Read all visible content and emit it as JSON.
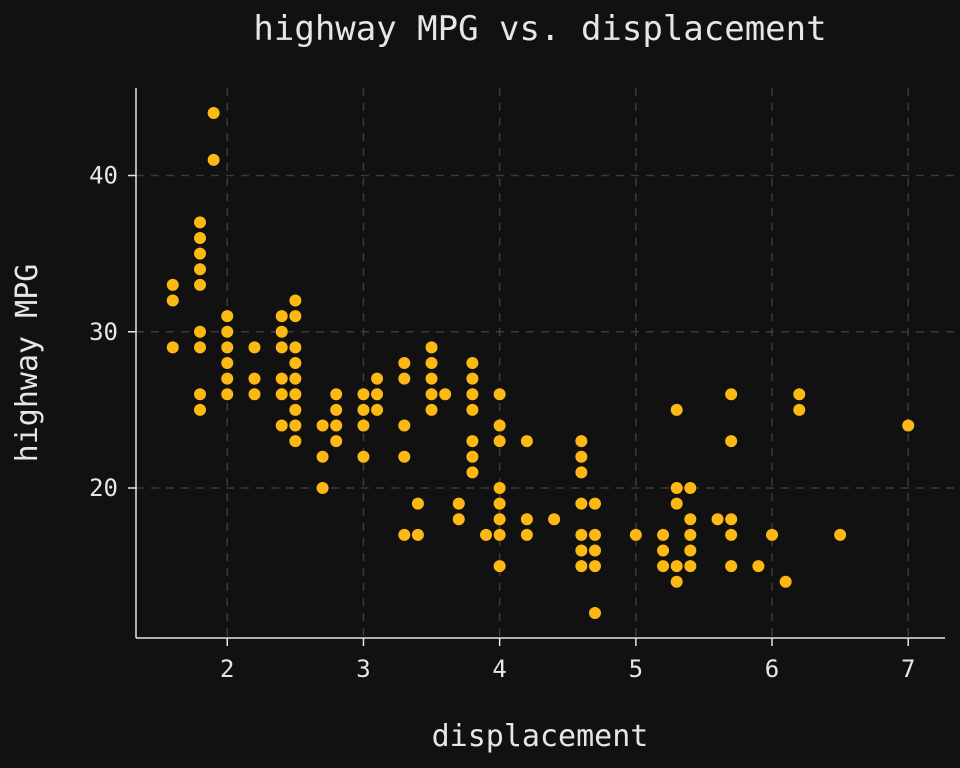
{
  "chart_data": {
    "type": "scatter",
    "title": "highway MPG vs. displacement",
    "xlabel": "displacement",
    "ylabel": "highway MPG",
    "xlim": [
      1.33,
      7.27
    ],
    "ylim": [
      10.4,
      45.6
    ],
    "xticks": [
      2,
      3,
      4,
      5,
      6,
      7
    ],
    "yticks": [
      20,
      30,
      40
    ],
    "grid": true,
    "point_color": "#FDB913",
    "background": "#111111",
    "points": [
      [
        1.6,
        33
      ],
      [
        1.6,
        32
      ],
      [
        1.6,
        29
      ],
      [
        1.8,
        37
      ],
      [
        1.8,
        36
      ],
      [
        1.8,
        35
      ],
      [
        1.8,
        34
      ],
      [
        1.8,
        33
      ],
      [
        1.8,
        30
      ],
      [
        1.8,
        29
      ],
      [
        1.8,
        26
      ],
      [
        1.8,
        25
      ],
      [
        1.9,
        44
      ],
      [
        1.9,
        41
      ],
      [
        2.0,
        31
      ],
      [
        2.0,
        30
      ],
      [
        2.0,
        29
      ],
      [
        2.0,
        28
      ],
      [
        2.0,
        27
      ],
      [
        2.0,
        26
      ],
      [
        2.2,
        29
      ],
      [
        2.2,
        27
      ],
      [
        2.2,
        26
      ],
      [
        2.4,
        31
      ],
      [
        2.4,
        30
      ],
      [
        2.4,
        29
      ],
      [
        2.4,
        27
      ],
      [
        2.4,
        26
      ],
      [
        2.4,
        24
      ],
      [
        2.5,
        32
      ],
      [
        2.5,
        31
      ],
      [
        2.5,
        29
      ],
      [
        2.5,
        28
      ],
      [
        2.5,
        27
      ],
      [
        2.5,
        26
      ],
      [
        2.5,
        25
      ],
      [
        2.5,
        24
      ],
      [
        2.5,
        23
      ],
      [
        2.7,
        24
      ],
      [
        2.7,
        22
      ],
      [
        2.7,
        20
      ],
      [
        2.8,
        26
      ],
      [
        2.8,
        25
      ],
      [
        2.8,
        24
      ],
      [
        2.8,
        23
      ],
      [
        3.0,
        26
      ],
      [
        3.0,
        25
      ],
      [
        3.0,
        24
      ],
      [
        3.0,
        22
      ],
      [
        3.1,
        27
      ],
      [
        3.1,
        26
      ],
      [
        3.1,
        25
      ],
      [
        3.3,
        28
      ],
      [
        3.3,
        27
      ],
      [
        3.3,
        24
      ],
      [
        3.3,
        22
      ],
      [
        3.3,
        17
      ],
      [
        3.4,
        19
      ],
      [
        3.4,
        17
      ],
      [
        3.5,
        29
      ],
      [
        3.5,
        28
      ],
      [
        3.5,
        27
      ],
      [
        3.5,
        26
      ],
      [
        3.5,
        25
      ],
      [
        3.6,
        26
      ],
      [
        3.7,
        19
      ],
      [
        3.7,
        18
      ],
      [
        3.8,
        28
      ],
      [
        3.8,
        27
      ],
      [
        3.8,
        26
      ],
      [
        3.8,
        25
      ],
      [
        3.8,
        23
      ],
      [
        3.8,
        22
      ],
      [
        3.8,
        21
      ],
      [
        3.9,
        17
      ],
      [
        4.0,
        26
      ],
      [
        4.0,
        24
      ],
      [
        4.0,
        23
      ],
      [
        4.0,
        20
      ],
      [
        4.0,
        19
      ],
      [
        4.0,
        18
      ],
      [
        4.0,
        17
      ],
      [
        4.0,
        15
      ],
      [
        4.2,
        23
      ],
      [
        4.2,
        18
      ],
      [
        4.2,
        17
      ],
      [
        4.4,
        18
      ],
      [
        4.6,
        23
      ],
      [
        4.6,
        22
      ],
      [
        4.6,
        21
      ],
      [
        4.6,
        19
      ],
      [
        4.6,
        17
      ],
      [
        4.6,
        16
      ],
      [
        4.6,
        15
      ],
      [
        4.7,
        19
      ],
      [
        4.7,
        17
      ],
      [
        4.7,
        16
      ],
      [
        4.7,
        15
      ],
      [
        4.7,
        12
      ],
      [
        5.0,
        17
      ],
      [
        5.2,
        17
      ],
      [
        5.2,
        16
      ],
      [
        5.2,
        15
      ],
      [
        5.3,
        25
      ],
      [
        5.3,
        20
      ],
      [
        5.3,
        19
      ],
      [
        5.3,
        15
      ],
      [
        5.3,
        14
      ],
      [
        5.4,
        20
      ],
      [
        5.4,
        18
      ],
      [
        5.4,
        17
      ],
      [
        5.4,
        16
      ],
      [
        5.4,
        15
      ],
      [
        5.6,
        18
      ],
      [
        5.7,
        26
      ],
      [
        5.7,
        23
      ],
      [
        5.7,
        18
      ],
      [
        5.7,
        17
      ],
      [
        5.7,
        15
      ],
      [
        5.9,
        15
      ],
      [
        6.0,
        17
      ],
      [
        6.1,
        14
      ],
      [
        6.2,
        26
      ],
      [
        6.2,
        25
      ],
      [
        6.5,
        17
      ],
      [
        7.0,
        24
      ]
    ]
  }
}
